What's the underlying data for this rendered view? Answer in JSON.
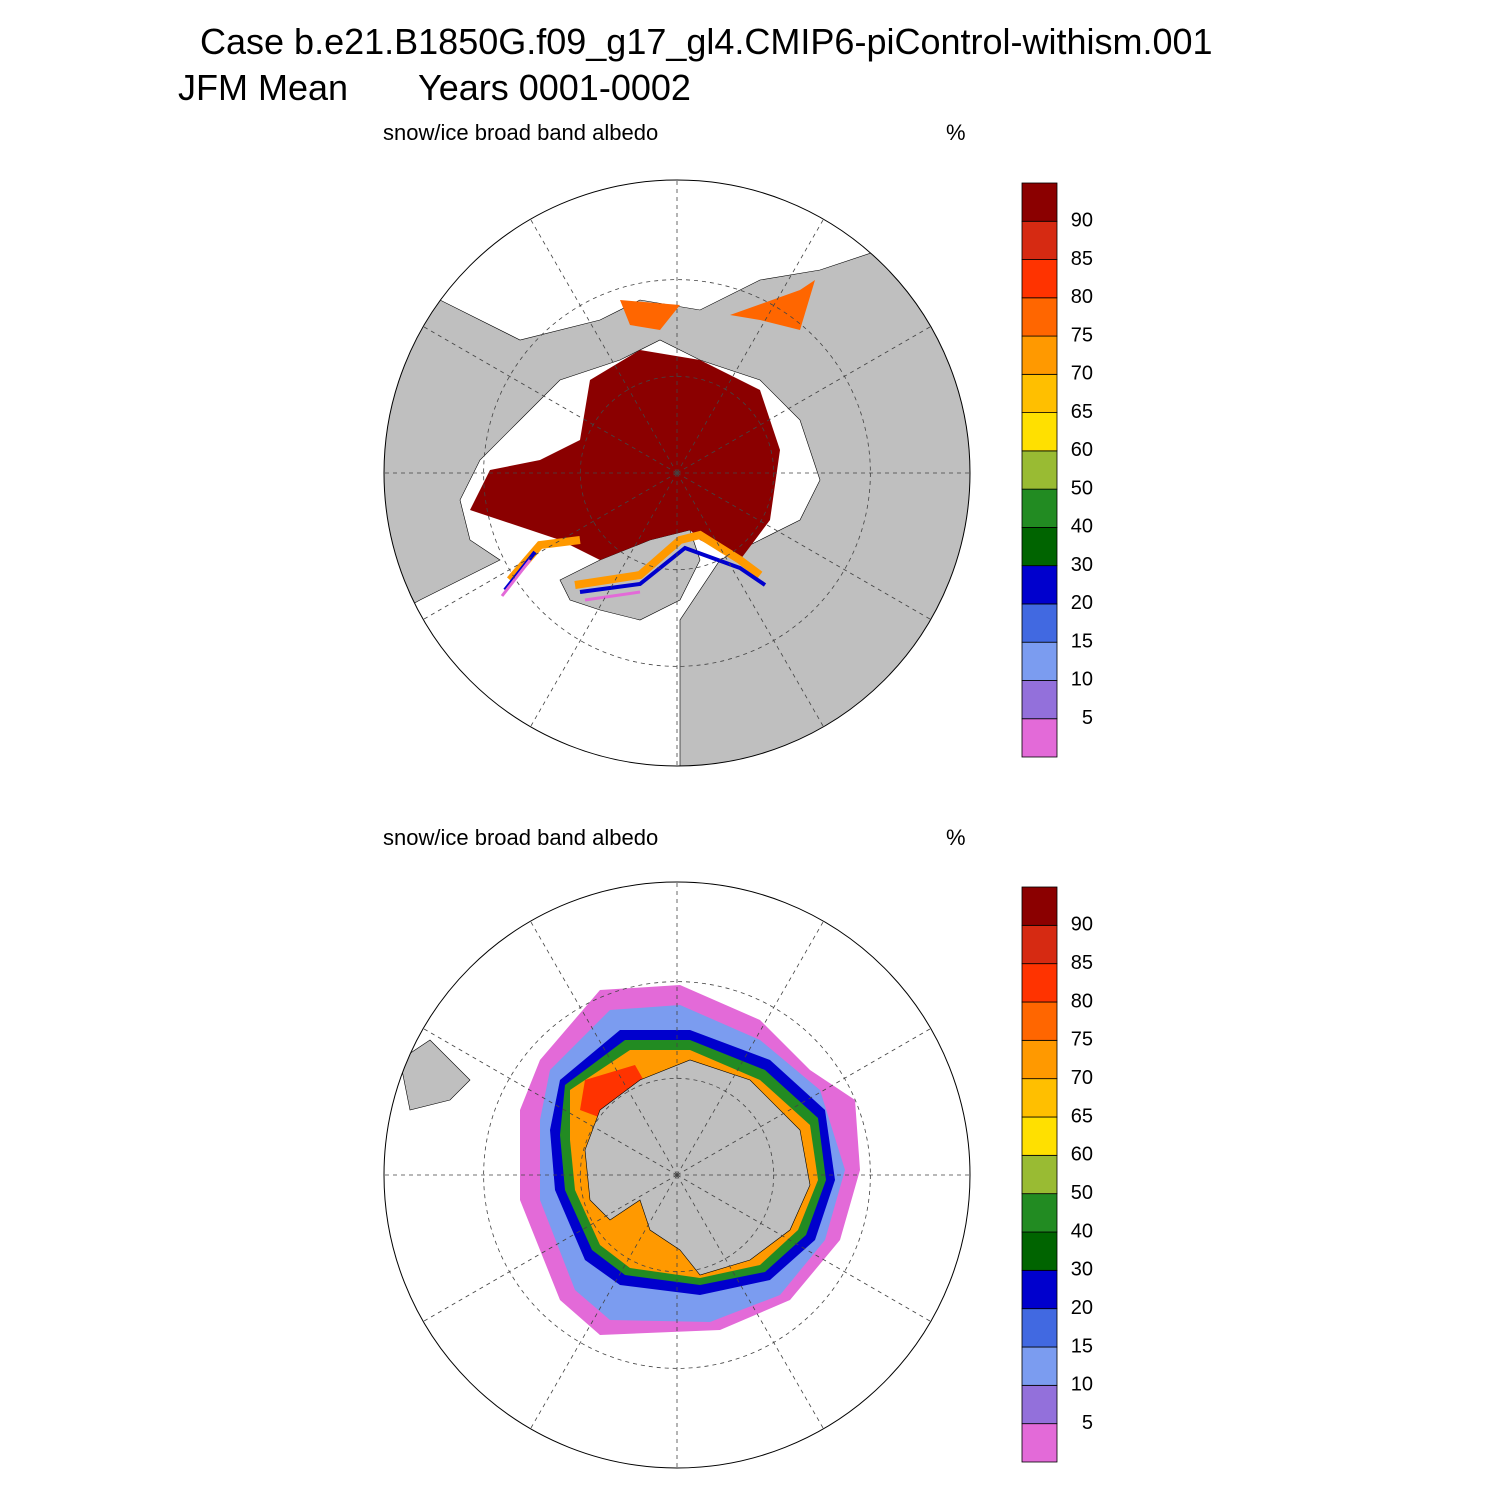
{
  "header": {
    "title": "Case b.e21.B1850G.f09_g17_gl4.CMIP6-piControl-withism.001",
    "season": "JFM Mean",
    "years": "Years 0001-0002"
  },
  "panels": [
    {
      "title": "snow/ice broad band albedo",
      "units": "%"
    },
    {
      "title": "snow/ice broad band albedo",
      "units": "%"
    }
  ],
  "colorbar": {
    "levels": [
      5,
      10,
      15,
      20,
      30,
      40,
      50,
      60,
      65,
      70,
      75,
      80,
      85,
      90
    ],
    "colors": [
      "#e36ad8",
      "#9370db",
      "#7b9cf0",
      "#4169e1",
      "#0000cd",
      "#006400",
      "#228b22",
      "#99bb33",
      "#ffe000",
      "#ffbf00",
      "#ff9900",
      "#ff6600",
      "#ff3300",
      "#d62a12",
      "#8b0000"
    ]
  }
}
